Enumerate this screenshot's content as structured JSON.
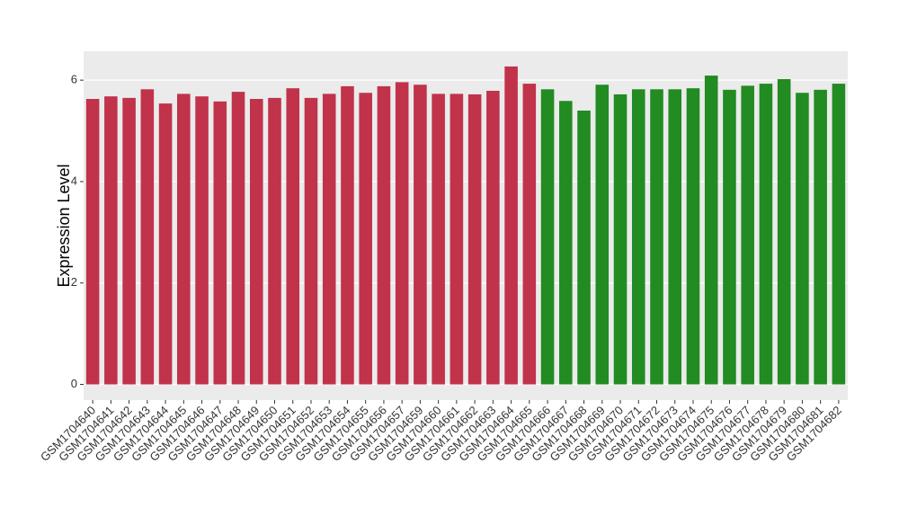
{
  "chart_data": {
    "type": "bar",
    "y_label": "Expression Level",
    "categories": [
      "GSM1704640",
      "GSM1704641",
      "GSM1704642",
      "GSM1704643",
      "GSM1704644",
      "GSM1704645",
      "GSM1704646",
      "GSM1704647",
      "GSM1704648",
      "GSM1704649",
      "GSM1704650",
      "GSM1704651",
      "GSM1704652",
      "GSM1704653",
      "GSM1704654",
      "GSM1704655",
      "GSM1704656",
      "GSM1704657",
      "GSM1704659",
      "GSM1704660",
      "GSM1704661",
      "GSM1704662",
      "GSM1704663",
      "GSM1704664",
      "GSM1704665",
      "GSM1704666",
      "GSM1704667",
      "GSM1704668",
      "GSM1704669",
      "GSM1704670",
      "GSM1704671",
      "GSM1704672",
      "GSM1704673",
      "GSM1704674",
      "GSM1704675",
      "GSM1704676",
      "GSM1704677",
      "GSM1704678",
      "GSM1704679",
      "GSM1704680",
      "GSM1704681",
      "GSM1704682"
    ],
    "values": [
      5.63,
      5.68,
      5.65,
      5.82,
      5.54,
      5.73,
      5.68,
      5.58,
      5.77,
      5.63,
      5.65,
      5.84,
      5.65,
      5.73,
      5.88,
      5.75,
      5.88,
      5.96,
      5.91,
      5.73,
      5.73,
      5.72,
      5.79,
      6.27,
      5.93,
      5.82,
      5.59,
      5.4,
      5.91,
      5.72,
      5.82,
      5.82,
      5.82,
      5.84,
      6.09,
      5.81,
      5.89,
      5.93,
      6.02,
      5.75,
      5.81,
      5.93
    ],
    "colors": [
      "#c0334a",
      "#c0334a",
      "#c0334a",
      "#c0334a",
      "#c0334a",
      "#c0334a",
      "#c0334a",
      "#c0334a",
      "#c0334a",
      "#c0334a",
      "#c0334a",
      "#c0334a",
      "#c0334a",
      "#c0334a",
      "#c0334a",
      "#c0334a",
      "#c0334a",
      "#c0334a",
      "#c0334a",
      "#c0334a",
      "#c0334a",
      "#c0334a",
      "#c0334a",
      "#c0334a",
      "#c0334a",
      "#228b22",
      "#228b22",
      "#228b22",
      "#228b22",
      "#228b22",
      "#228b22",
      "#228b22",
      "#228b22",
      "#228b22",
      "#228b22",
      "#228b22",
      "#228b22",
      "#228b22",
      "#228b22",
      "#228b22",
      "#228b22",
      "#228b22"
    ],
    "ylim": [
      -0.31,
      6.57
    ],
    "yticks": [
      0,
      2,
      4,
      6
    ],
    "grid": true
  }
}
